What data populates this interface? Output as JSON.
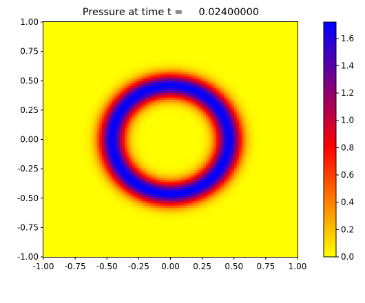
{
  "chart_data": {
    "type": "heatmap",
    "title": "Pressure at time t =     0.02400000",
    "xlabel": "",
    "ylabel": "",
    "xlim": [
      -1.0,
      1.0
    ],
    "ylim": [
      -1.0,
      1.0
    ],
    "x_ticks": [
      "-1.00",
      "-0.75",
      "-0.50",
      "-0.25",
      "0.00",
      "0.25",
      "0.50",
      "0.75",
      "1.00"
    ],
    "y_ticks": [
      "-1.00",
      "-0.75",
      "-0.50",
      "-0.25",
      "0.00",
      "0.25",
      "0.50",
      "0.75",
      "1.00"
    ],
    "grid": false,
    "field": {
      "description_of_shape": "radially symmetric ring centred at origin",
      "center": [
        0.0,
        0.0
      ],
      "ring_peak_radius": 0.46,
      "ring_sigma": 0.1,
      "peak_value": 1.72,
      "background_value": 0.0,
      "grid_cells": 100
    },
    "colorbar": {
      "min": 0.0,
      "max": 1.72,
      "ticks": [
        "0.0",
        "0.2",
        "0.4",
        "0.6",
        "0.8",
        "1.0",
        "1.2",
        "1.4",
        "1.6"
      ],
      "tick_values": [
        0.0,
        0.2,
        0.4,
        0.6,
        0.8,
        1.0,
        1.2,
        1.4,
        1.6
      ],
      "colormap_stops": [
        {
          "value": 0.0,
          "color": "#ffff00"
        },
        {
          "value": 0.8,
          "color": "#ff0000"
        },
        {
          "value": 1.72,
          "color": "#0000ff"
        }
      ]
    }
  }
}
